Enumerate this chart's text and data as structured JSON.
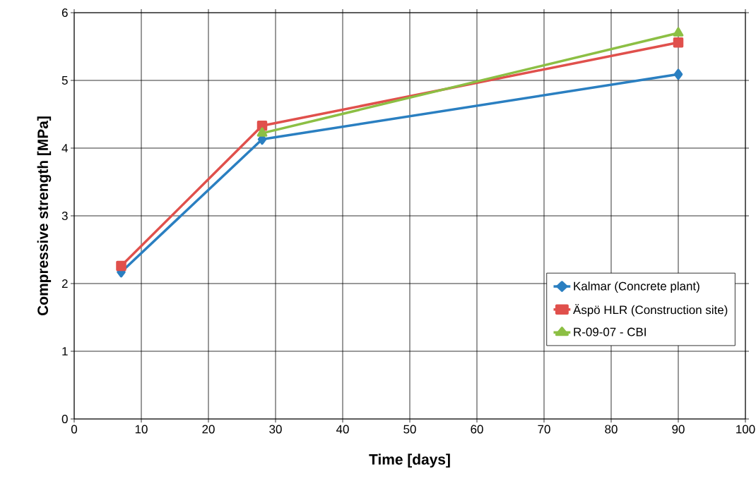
{
  "chart_data": {
    "type": "line",
    "xlabel": "Time [days]",
    "ylabel": "Compressive strength [MPa]",
    "xlim": [
      0,
      100
    ],
    "xticks": [
      0,
      10,
      20,
      30,
      40,
      50,
      60,
      70,
      80,
      90,
      100
    ],
    "ylim": [
      0,
      6
    ],
    "yticks": [
      0,
      1,
      2,
      3,
      4,
      5,
      6
    ],
    "grid": true,
    "legend": "bottom right",
    "line_style": "solid",
    "series": [
      {
        "name": "Kalmar (Concrete plant)",
        "color": "#2a7fc1",
        "marker": "diamond",
        "x": [
          7,
          28,
          90
        ],
        "values": [
          2.17,
          4.13,
          5.09
        ]
      },
      {
        "name": "Äspö HLR (Construction site)",
        "color": "#e0504c",
        "marker": "square",
        "x": [
          7,
          28,
          90
        ],
        "values": [
          2.26,
          4.33,
          5.56
        ]
      },
      {
        "name": "R-09-07 - CBI",
        "color": "#8cbf44",
        "marker": "triangle",
        "x": [
          28,
          90
        ],
        "values": [
          4.22,
          5.7
        ]
      }
    ]
  }
}
